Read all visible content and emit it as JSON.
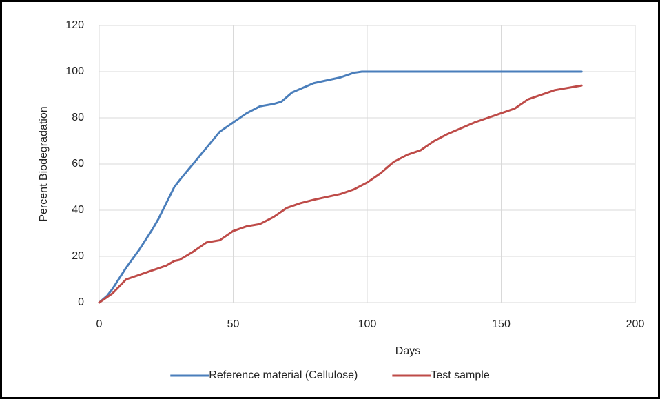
{
  "chart_data": {
    "type": "line",
    "x_label": "Days",
    "y_label": "Percent Biodegradation",
    "xlim": [
      0,
      200
    ],
    "xticks": [
      0,
      50,
      100,
      150,
      200
    ],
    "ylim": [
      0,
      120
    ],
    "yticks": [
      0,
      20,
      40,
      60,
      80,
      100,
      120
    ],
    "grid": true,
    "legend": "bottom",
    "series": [
      {
        "name": "Reference material (Cellulose)",
        "color": "#4a7ebb",
        "x": [
          0,
          3,
          5,
          10,
          15,
          20,
          22,
          25,
          28,
          30,
          35,
          40,
          45,
          50,
          55,
          60,
          65,
          68,
          72,
          80,
          90,
          95,
          98,
          100,
          120,
          150,
          180
        ],
        "values": [
          0,
          3,
          6,
          15,
          23,
          32,
          36,
          43,
          50,
          53,
          60,
          67,
          74,
          78,
          82,
          85,
          86,
          87,
          91,
          95,
          97.5,
          99.5,
          100,
          100,
          100,
          100,
          100
        ]
      },
      {
        "name": "Test sample",
        "color": "#be4b48",
        "x": [
          0,
          5,
          10,
          15,
          20,
          25,
          28,
          30,
          35,
          40,
          45,
          50,
          55,
          60,
          65,
          70,
          75,
          80,
          90,
          95,
          100,
          105,
          110,
          115,
          120,
          125,
          130,
          140,
          145,
          150,
          155,
          160,
          170,
          180
        ],
        "values": [
          0,
          4,
          10,
          12,
          14,
          16,
          18,
          18.5,
          22,
          26,
          27,
          31,
          33,
          34,
          37,
          41,
          43,
          44.5,
          47,
          49,
          52,
          56,
          61,
          64,
          66,
          70,
          73,
          78,
          80,
          82,
          84,
          88,
          92,
          94
        ]
      }
    ]
  }
}
